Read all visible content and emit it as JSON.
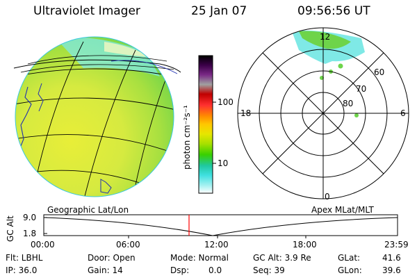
{
  "header": {
    "instrument": "Ultraviolet Imager",
    "date": "25 Jan 07",
    "time": "09:56:56 UT"
  },
  "colorbar": {
    "label": "photon cm⁻²s⁻¹",
    "ticks": [
      "100",
      "10"
    ],
    "colors": [
      "#000000",
      "#3b0048",
      "#7a2a86",
      "#a0a0a0",
      "#c00000",
      "#ff3030",
      "#ff8c00",
      "#ffc800",
      "#e6e600",
      "#a8e000",
      "#38d000",
      "#20c8a0",
      "#40e0e0",
      "#a0f0f0",
      "#ffffff"
    ]
  },
  "polar": {
    "mlt_labels": [
      "12",
      "18",
      "6",
      "0"
    ],
    "lat_labels": [
      "60",
      "70",
      "80"
    ]
  },
  "timeline": {
    "left_label": "Geographic Lat/Lon",
    "right_label": "Apex MLat/MLT",
    "axis_title": "GC Alt",
    "ytick_top": "9.0",
    "ytick_bottom": "1.8",
    "xticks": [
      "00:00",
      "06:00",
      "12:00",
      "18:00",
      "23:59"
    ],
    "marker_time": "09:56:56",
    "marker_color": "#ff0000"
  },
  "status": {
    "flt": "Flt: LBHL",
    "ip": "IP: 36.0",
    "door": "Door: Open",
    "gain": "Gain: 14",
    "mode": "Mode: Normal",
    "dsp": "Dsp:",
    "dsp_val": "0.0",
    "gcalt": "GC Alt: 3.9 Re",
    "seq": "Seq: 39",
    "glat": "GLat:",
    "glat_val": "41.6",
    "glon": "GLon:",
    "glon_val": "39.6"
  },
  "colors": {
    "disk_yellow": "#e6ea3c",
    "disk_green": "#6ed44a",
    "aurora_cyan": "#7fe9e6",
    "coast_blue": "#2030b0"
  }
}
